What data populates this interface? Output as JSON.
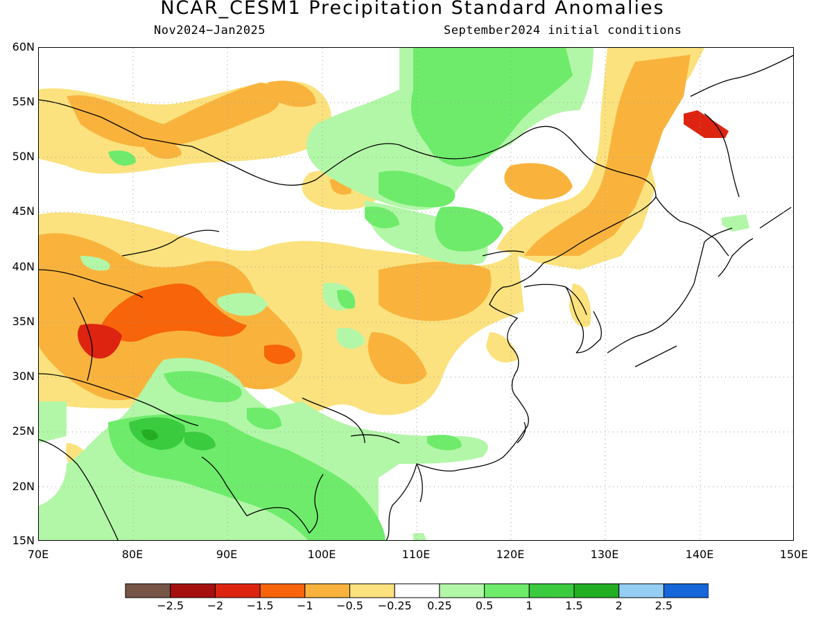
{
  "title": "NCAR_CESM1 Precipitation Standard Anomalies",
  "subtitle_left": "Nov2024−Jan2025",
  "subtitle_right": "September2024 initial conditions",
  "map": {
    "lon_range": [
      70,
      150
    ],
    "lat_range": [
      15,
      60
    ],
    "lat_labels": [
      "60N",
      "55N",
      "50N",
      "45N",
      "40N",
      "35N",
      "30N",
      "25N",
      "20N",
      "15N"
    ],
    "lon_labels": [
      "70E",
      "80E",
      "90E",
      "100E",
      "110E",
      "120E",
      "130E",
      "140E",
      "150E"
    ],
    "gridlines": "dotted",
    "coastlines": true,
    "region": "East Asia"
  },
  "colorbar": {
    "colors": [
      "#765446",
      "#a50f0f",
      "#dd2411",
      "#f7640a",
      "#f9b33d",
      "#fbe27e",
      "#ffffff",
      "#b2f7a7",
      "#6eeb6b",
      "#3acb3e",
      "#22ad22",
      "#94cef4",
      "#1566d8"
    ],
    "labels": [
      "−2.5",
      "−2",
      "−1.5",
      "−1",
      "−0.5",
      "−0.25",
      "0.25",
      "0.5",
      "1",
      "1.5",
      "2",
      "2.5"
    ]
  }
}
